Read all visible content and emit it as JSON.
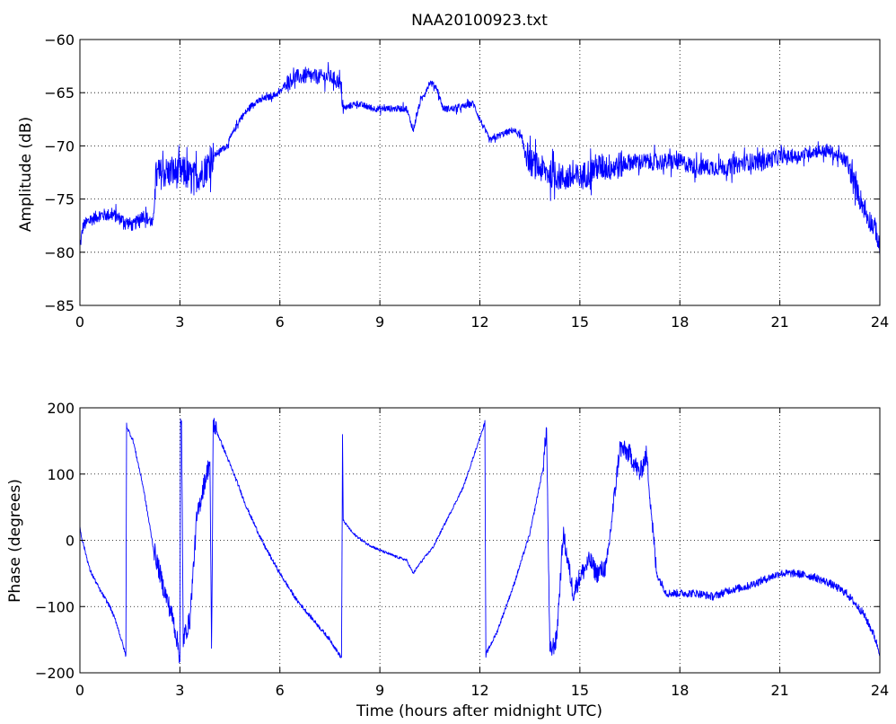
{
  "chart_data": [
    {
      "type": "line",
      "title": "NAA20100923.txt",
      "xlabel": "",
      "ylabel": "Amplitude (dB)",
      "xlim": [
        0,
        24
      ],
      "ylim": [
        -85,
        -60
      ],
      "xticks": [
        0,
        3,
        6,
        9,
        12,
        15,
        18,
        21,
        24
      ],
      "yticks": [
        -85,
        -80,
        -75,
        -70,
        -65,
        -60
      ],
      "grid": true,
      "color": "#0000ff",
      "noise_db": {
        "description_units": "hours",
        "bands": [
          [
            0,
            2.2,
            1.2
          ],
          [
            2.2,
            4.0,
            3.0
          ],
          [
            4.0,
            6.2,
            0.6
          ],
          [
            6.2,
            7.9,
            1.4
          ],
          [
            7.9,
            13.3,
            0.6
          ],
          [
            13.3,
            16.3,
            2.6
          ],
          [
            16.3,
            21.0,
            1.6
          ],
          [
            21.0,
            23.0,
            1.2
          ],
          [
            23.0,
            24,
            2.0
          ]
        ]
      },
      "series": [
        {
          "x": [
            0.0,
            0.1,
            0.3,
            0.6,
            1.0,
            1.3,
            1.6,
            1.9,
            2.1,
            2.2,
            2.25,
            2.5,
            2.8,
            3.1,
            3.4,
            3.7,
            4.0,
            4.4,
            4.8,
            5.2,
            5.6,
            6.0,
            6.2,
            6.5,
            7.0,
            7.5,
            7.8,
            7.9,
            8.3,
            8.8,
            9.3,
            9.8,
            10.0,
            10.2,
            10.5,
            10.7,
            10.9,
            11.3,
            11.8,
            12.0,
            12.3,
            12.6,
            13.0,
            13.2,
            13.5,
            14.0,
            14.5,
            15.0,
            15.5,
            16.0,
            16.5,
            17.0,
            17.5,
            18.0,
            18.5,
            19.0,
            19.5,
            20.0,
            20.5,
            21.0,
            21.5,
            22.0,
            22.5,
            23.0,
            23.3,
            23.6,
            23.9,
            24.0
          ],
          "y": [
            -79.5,
            -77.5,
            -77.0,
            -76.5,
            -76.5,
            -77.0,
            -77.5,
            -76.5,
            -77.0,
            -77.5,
            -73.0,
            -72.5,
            -72.5,
            -72.5,
            -73.0,
            -72.5,
            -71.0,
            -70.0,
            -67.5,
            -66.0,
            -65.5,
            -65.0,
            -64.0,
            -63.5,
            -63.5,
            -63.5,
            -64.0,
            -66.5,
            -66.0,
            -66.5,
            -66.5,
            -66.5,
            -68.5,
            -66.0,
            -64.0,
            -64.5,
            -66.5,
            -66.5,
            -66.0,
            -67.5,
            -69.5,
            -69.0,
            -68.5,
            -69.0,
            -71.5,
            -72.5,
            -73.0,
            -73.0,
            -72.0,
            -72.0,
            -71.5,
            -71.5,
            -71.5,
            -71.5,
            -72.0,
            -72.0,
            -72.0,
            -71.5,
            -71.5,
            -71.0,
            -71.0,
            -70.5,
            -70.5,
            -71.5,
            -74.0,
            -76.5,
            -78.0,
            -80.0
          ]
        }
      ]
    },
    {
      "type": "line",
      "title": "",
      "xlabel": "Time (hours after midnight UTC)",
      "ylabel": "Phase (degrees)",
      "xlim": [
        0,
        24
      ],
      "ylim": [
        -200,
        200
      ],
      "xticks": [
        0,
        3,
        6,
        9,
        12,
        15,
        18,
        21,
        24
      ],
      "yticks": [
        -200,
        -100,
        0,
        100,
        200
      ],
      "grid": true,
      "color": "#0000ff",
      "series": [
        {
          "x": [
            0.0,
            0.05,
            0.3,
            0.6,
            0.9,
            1.1,
            1.3,
            1.38,
            1.4,
            1.42,
            1.6,
            1.9,
            2.2,
            2.5,
            2.8,
            2.95,
            3.0,
            3.02,
            3.05,
            3.1,
            3.3,
            3.5,
            3.7,
            3.9,
            3.95,
            4.0,
            4.02,
            4.3,
            4.7,
            5.0,
            5.5,
            6.0,
            6.5,
            7.0,
            7.5,
            7.85,
            7.88,
            7.9,
            8.2,
            8.6,
            9.0,
            9.5,
            9.8,
            10.0,
            10.2,
            10.6,
            11.0,
            11.5,
            11.9,
            12.15,
            12.18,
            12.2,
            12.5,
            13.0,
            13.5,
            13.9,
            14.0,
            14.1,
            14.3,
            14.5,
            14.8,
            15.0,
            15.3,
            15.5,
            15.8,
            16.0,
            16.2,
            16.5,
            16.8,
            17.0,
            17.3,
            17.6,
            18.0,
            18.5,
            19.0,
            19.5,
            20.0,
            20.5,
            21.0,
            21.5,
            22.0,
            22.5,
            23.0,
            23.5,
            23.8,
            24.0
          ],
          "y": [
            20,
            5,
            -45,
            -75,
            -100,
            -125,
            -160,
            -175,
            175,
            170,
            150,
            80,
            -10,
            -70,
            -120,
            -160,
            -178,
            175,
            170,
            -150,
            -120,
            30,
            80,
            120,
            -175,
            178,
            175,
            140,
            90,
            50,
            -5,
            -50,
            -90,
            -120,
            -150,
            -178,
            160,
            30,
            10,
            -5,
            -15,
            -25,
            -30,
            -50,
            -35,
            -10,
            30,
            80,
            140,
            178,
            -178,
            -170,
            -140,
            -70,
            10,
            110,
            170,
            -170,
            -150,
            10,
            -80,
            -55,
            -30,
            -50,
            -40,
            50,
            140,
            130,
            100,
            130,
            -50,
            -80,
            -80,
            -80,
            -85,
            -75,
            -70,
            -60,
            -50,
            -50,
            -55,
            -65,
            -80,
            -110,
            -140,
            -170
          ]
        }
      ]
    }
  ]
}
